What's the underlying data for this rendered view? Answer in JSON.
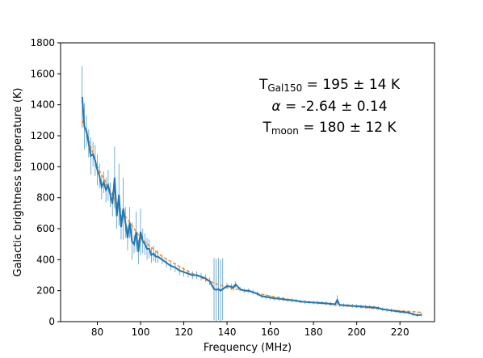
{
  "chart_data": {
    "type": "line",
    "xlabel": "Frequency (MHz)",
    "ylabel": "Galactic brightness temperature (K)",
    "xlim": [
      63,
      236
    ],
    "ylim": [
      0,
      1800
    ],
    "xticks": [
      80,
      100,
      120,
      140,
      160,
      180,
      200,
      220
    ],
    "yticks": [
      0,
      200,
      400,
      600,
      800,
      1000,
      1200,
      1400,
      1600,
      1800
    ],
    "grid": false,
    "colors": {
      "data": "#1f77b4",
      "fit": "#ff7f0e",
      "errorbar": "#1f77b4"
    },
    "fit_params": {
      "t150": 195,
      "alpha": -2.64,
      "tmoon": 180,
      "ref_freq": 150
    },
    "annotations": [
      {
        "main": "T",
        "sub": "Gal150",
        "rest": " = 195 ± 14 K"
      },
      {
        "main": "α",
        "sub": "",
        "rest": " = -2.64 ± 0.14"
      },
      {
        "main": "T",
        "sub": "moon",
        "rest": " = 180 ± 12 K"
      }
    ],
    "series": [
      {
        "style": "line-with-errorbars",
        "x": [
          73,
          74,
          75,
          76,
          77,
          78,
          79,
          80,
          81,
          82,
          83,
          84,
          85,
          86,
          87,
          88,
          89,
          90,
          91,
          92,
          93,
          94,
          95,
          96,
          97,
          98,
          99,
          100,
          101,
          102,
          103,
          104,
          105,
          106,
          107,
          108,
          110,
          112,
          114,
          116,
          118,
          120,
          122,
          124,
          126,
          128,
          130,
          132,
          134,
          135,
          136,
          137,
          138,
          140,
          142,
          143,
          144,
          146,
          148,
          150,
          152,
          154,
          156,
          158,
          160,
          162,
          164,
          166,
          168,
          170,
          172,
          174,
          176,
          178,
          180,
          182,
          184,
          186,
          188,
          190,
          191,
          192,
          194,
          196,
          198,
          200,
          202,
          204,
          206,
          208,
          210,
          212,
          214,
          216,
          218,
          220,
          222,
          224,
          226,
          228,
          230
        ],
        "y": [
          1450,
          1260,
          1230,
          1150,
          1070,
          1080,
          1040,
          980,
          940,
          870,
          900,
          850,
          880,
          820,
          760,
          930,
          680,
          820,
          610,
          730,
          640,
          540,
          640,
          520,
          500,
          580,
          450,
          580,
          520,
          500,
          470,
          470,
          430,
          440,
          420,
          420,
          400,
          380,
          360,
          350,
          330,
          320,
          310,
          300,
          300,
          290,
          280,
          260,
          210,
          205,
          210,
          200,
          210,
          230,
          225,
          220,
          240,
          210,
          200,
          200,
          190,
          180,
          165,
          160,
          155,
          150,
          148,
          145,
          140,
          138,
          135,
          130,
          127,
          125,
          123,
          122,
          120,
          118,
          115,
          112,
          140,
          108,
          106,
          104,
          102,
          100,
          98,
          96,
          94,
          92,
          88,
          80,
          76,
          72,
          68,
          64,
          62,
          58,
          48,
          42,
          44
        ],
        "yerr": [
          200,
          150,
          100,
          90,
          120,
          80,
          100,
          100,
          80,
          80,
          70,
          80,
          100,
          80,
          80,
          200,
          80,
          200,
          80,
          200,
          100,
          80,
          100,
          120,
          60,
          130,
          80,
          150,
          80,
          70,
          70,
          60,
          50,
          50,
          40,
          40,
          30,
          30,
          30,
          30,
          30,
          30,
          25,
          25,
          25,
          25,
          25,
          25,
          200,
          200,
          200,
          200,
          200,
          20,
          20,
          20,
          20,
          15,
          15,
          15,
          15,
          15,
          15,
          15,
          15,
          15,
          15,
          15,
          12,
          12,
          12,
          12,
          12,
          12,
          12,
          12,
          12,
          12,
          12,
          12,
          30,
          12,
          12,
          12,
          12,
          12,
          12,
          12,
          12,
          12,
          12,
          12,
          12,
          12,
          12,
          12,
          12,
          12,
          12,
          12,
          12
        ]
      },
      {
        "style": "dashed-fit",
        "x": [
          73,
          80,
          90,
          100,
          110,
          120,
          130,
          140,
          150,
          160,
          170,
          180,
          190,
          200,
          210,
          220,
          230
        ],
        "y": [
          1300,
          1000,
          740,
          540,
          420,
          340,
          270,
          220,
          195,
          165,
          140,
          122,
          108,
          95,
          82,
          70,
          60
        ]
      }
    ]
  }
}
